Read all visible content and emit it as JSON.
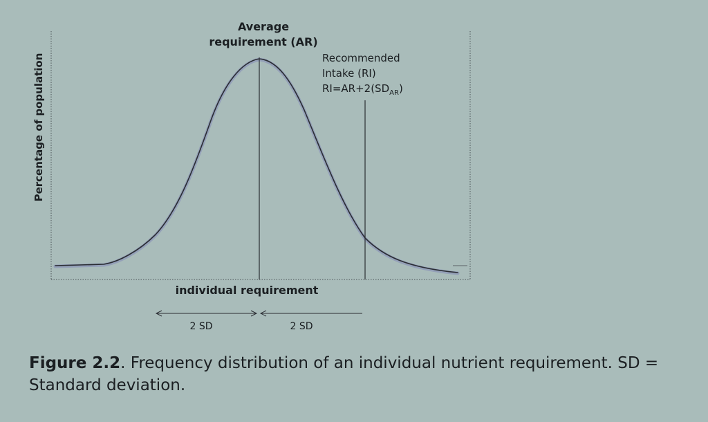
{
  "diagram": {
    "y_axis_label": "Percentage of population",
    "x_axis_label": "individual requirement",
    "ar_label_line1": "Average",
    "ar_label_line2": "requirement (AR)",
    "ri_label_line1": "Recommended",
    "ri_label_line2": "Intake (RI)",
    "ri_formula_main": "RI=AR+2(SD",
    "ri_formula_sub": "AR",
    "ri_formula_close": ")",
    "sd_left_label": "2 SD",
    "sd_right_label": "2 SD",
    "colors": {
      "background": "#a9bcba",
      "curve": "#2a2d33",
      "curve_shadow": "#8f98b8",
      "lines": "#2a2d33"
    }
  },
  "caption": {
    "label": "Figure 2.2",
    "text": ". Frequency distribution of an individual nutrient requirement. SD = Standard deviation."
  }
}
